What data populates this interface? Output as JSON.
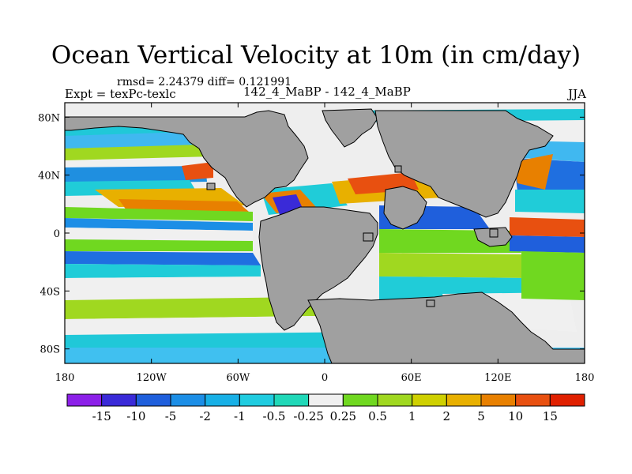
{
  "title": "Ocean Vertical Velocity at 10m (in cm/day)",
  "stats": "rmsd= 2.24379 diff= 0.121991",
  "experiment": "Expt = texPc-texlc",
  "model": "142_4_MaBP - 142_4_MaBP",
  "season": "JJA",
  "map": {
    "lat_labels": [
      "80N",
      "40N",
      "0",
      "40S",
      "80S"
    ],
    "lat_values": [
      80,
      40,
      0,
      -40,
      -80
    ],
    "lon_labels": [
      "180",
      "120W",
      "60W",
      "0",
      "60E",
      "120E",
      "180"
    ],
    "lon_values": [
      -180,
      -120,
      -60,
      0,
      60,
      120,
      180
    ],
    "lat_range": [
      -90,
      90
    ],
    "lon_range": [
      -180,
      180
    ]
  },
  "colorbar": {
    "labels": [
      "-15",
      "-10",
      "-5",
      "-2",
      "-1",
      "-0.5",
      "-0.25",
      "0.25",
      "0.5",
      "1",
      "2",
      "5",
      "10",
      "15"
    ],
    "colors": [
      "#8c20e8",
      "#3a2ad8",
      "#1f5fdc",
      "#1c8ee6",
      "#18b0e6",
      "#20cce0",
      "#20d8b8",
      "#f0f0f0",
      "#70d820",
      "#a0d820",
      "#cfd000",
      "#e8b000",
      "#e88000",
      "#e85010",
      "#e02000"
    ]
  },
  "colors": {
    "land": "#a0a0a0",
    "ocean_bg": "#eeeeee"
  }
}
